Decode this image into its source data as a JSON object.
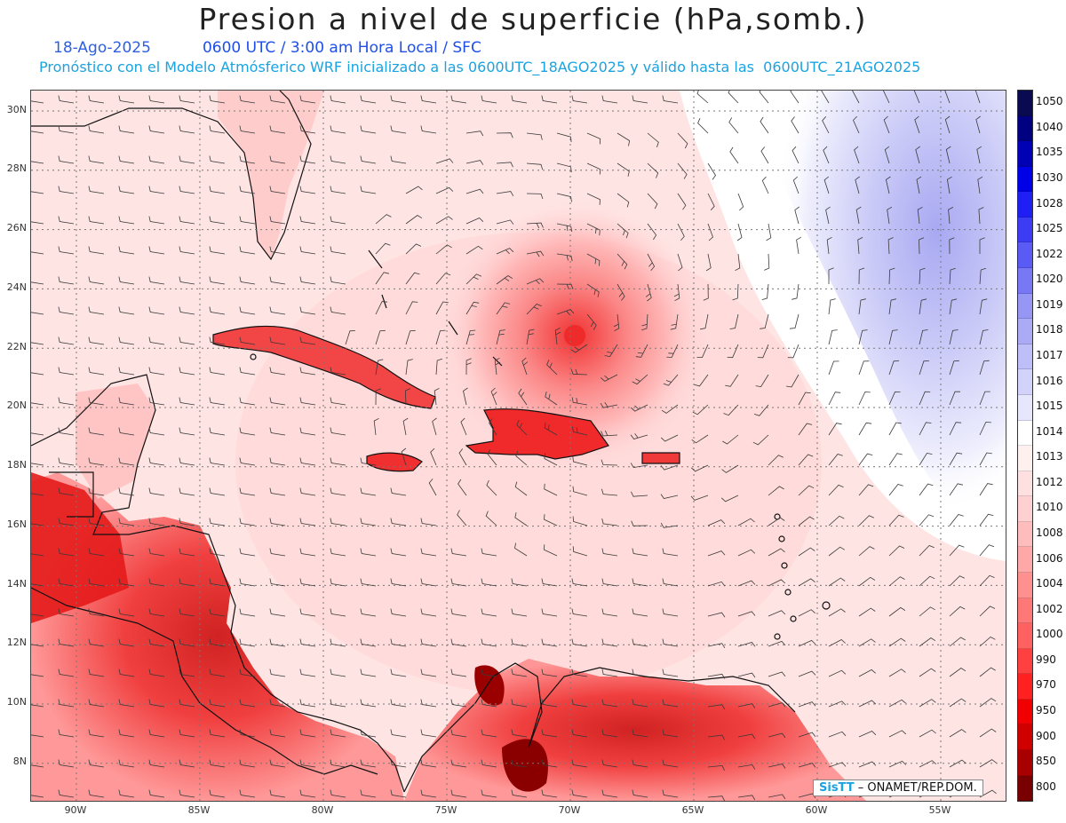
{
  "header": {
    "title": "Presion a nivel de superficie (hPa,somb.)",
    "date": "18-Ago-2025",
    "time_line": "0600 UTC / 3:00 am Hora Local / SFC",
    "forecast_line": "Pronóstico con el Modelo Atmósferico WRF inicializado a las 0600UTC_18AGO2025 y válido hasta las  0600UTC_21AGO2025"
  },
  "axes": {
    "lat_labels": [
      "30N",
      "28N",
      "26N",
      "24N",
      "22N",
      "20N",
      "18N",
      "16N",
      "14N",
      "12N",
      "10N",
      "8N"
    ],
    "lon_labels": [
      "90W",
      "85W",
      "80W",
      "75W",
      "70W",
      "65W",
      "60W",
      "55W"
    ]
  },
  "colorbar": {
    "levels": [
      "1050",
      "1040",
      "1035",
      "1030",
      "1028",
      "1025",
      "1022",
      "1020",
      "1019",
      "1018",
      "1017",
      "1016",
      "1015",
      "1014",
      "1013",
      "1012",
      "1010",
      "1008",
      "1006",
      "1004",
      "1002",
      "1000",
      "990",
      "970",
      "950",
      "900",
      "850",
      "800"
    ],
    "colors": [
      "#0a0a50",
      "#000080",
      "#0000b4",
      "#0000e6",
      "#1f1ff5",
      "#3c3cf5",
      "#5a5af5",
      "#7878f5",
      "#9696f5",
      "#aaaaf5",
      "#bebef8",
      "#d2d2fa",
      "#e6e6fc",
      "#ffffff",
      "#fff0f0",
      "#ffe0e0",
      "#ffd0d0",
      "#ffbcbc",
      "#ffa8a8",
      "#ff9090",
      "#ff7878",
      "#ff6060",
      "#ff4040",
      "#ff2020",
      "#f00000",
      "#d00000",
      "#a80000",
      "#780000"
    ]
  },
  "credit": {
    "logo": "SisTT",
    "text": " – ONAMET/REP.DOM."
  },
  "map_colors": {
    "background": "#ffe6e6",
    "low_center": "#f23c3c",
    "high_area": "#c9c9f7",
    "land_low": "#ee1b1b",
    "coast": "#111111",
    "barb": "#333333",
    "grid": "#777777"
  }
}
